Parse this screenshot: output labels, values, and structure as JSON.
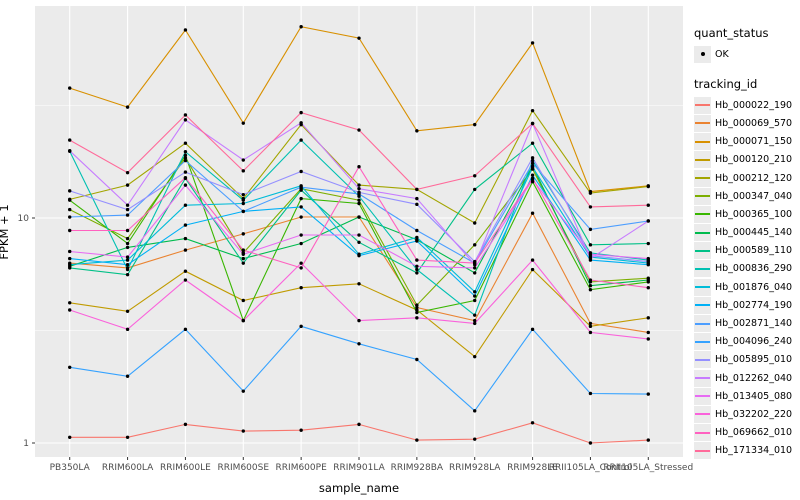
{
  "chart_data": {
    "type": "line",
    "title": "",
    "xlabel": "sample_name",
    "ylabel": "FPKM + 1",
    "y_scale": "log10",
    "y_tick_labels": [
      "10",
      "1"
    ],
    "y_tick_values": [
      10,
      1
    ],
    "y_minor_values": [
      3.162,
      31.623
    ],
    "ylim": [
      0.93,
      85
    ],
    "grid": "on",
    "panel_bg": "#EBEBEB",
    "grid_color": "#FFFFFF",
    "tick_text_color": "#4D4D4D",
    "point_color": "#000000",
    "legend_position": "right",
    "categories": [
      "PB350LA",
      "RRIM600LA",
      "RRIM600LE",
      "RRIM600SE",
      "RRIM600PE",
      "RRIM901LA",
      "RRIM928BA",
      "RRIM928LA",
      "RRIM928LE",
      "RRII105LA_Control",
      "RRII105LA_Stressed"
    ],
    "legend": {
      "quant_status_title": "quant_status",
      "quant_status_items": [
        {
          "label": "OK",
          "shape": "point"
        }
      ],
      "tracking_title": "tracking_id"
    },
    "series": [
      {
        "name": "Hb_000022_190",
        "color": "#F8766D",
        "values": [
          1.06,
          1.06,
          1.21,
          1.13,
          1.14,
          1.21,
          1.03,
          1.04,
          1.23,
          1.0,
          1.03
        ]
      },
      {
        "name": "Hb_000069_570",
        "color": "#EA8331",
        "values": [
          6.3,
          6.0,
          7.2,
          8.5,
          10.1,
          10.1,
          4.0,
          3.5,
          10.5,
          3.4,
          3.1
        ]
      },
      {
        "name": "Hb_000071_150",
        "color": "#D89000",
        "values": [
          37.8,
          31.1,
          68.5,
          26.4,
          70.8,
          63.0,
          24.4,
          26.0,
          60.0,
          13.1,
          13.9
        ]
      },
      {
        "name": "Hb_000120_210",
        "color": "#C09B00",
        "values": [
          4.2,
          3.85,
          5.8,
          4.3,
          4.9,
          5.1,
          3.9,
          2.42,
          5.9,
          3.3,
          3.6
        ]
      },
      {
        "name": "Hb_000212_120",
        "color": "#A3A500",
        "values": [
          12.1,
          14.0,
          21.5,
          12.2,
          26.0,
          14.0,
          13.4,
          9.5,
          30.0,
          12.9,
          13.8
        ]
      },
      {
        "name": "Hb_000347_040",
        "color": "#7CAE00",
        "values": [
          10.9,
          8.1,
          18.5,
          7.0,
          13.5,
          12.0,
          4.1,
          7.6,
          16.5,
          5.2,
          5.4
        ]
      },
      {
        "name": "Hb_000365_100",
        "color": "#39B600",
        "values": [
          12.0,
          7.7,
          19.0,
          3.5,
          12.2,
          11.6,
          3.8,
          4.3,
          14.5,
          4.8,
          5.2
        ]
      },
      {
        "name": "Hb_000445_140",
        "color": "#00BB4E",
        "values": [
          6.1,
          7.4,
          8.1,
          6.6,
          7.7,
          10.1,
          8.0,
          5.7,
          17.0,
          5.0,
          5.3
        ]
      },
      {
        "name": "Hb_000589_110",
        "color": "#00C087",
        "values": [
          6.0,
          5.6,
          15.0,
          6.3,
          13.3,
          7.8,
          5.7,
          13.4,
          21.5,
          7.6,
          7.7
        ]
      },
      {
        "name": "Hb_000836_290",
        "color": "#00C0B2",
        "values": [
          19.8,
          5.9,
          19.7,
          12.0,
          22.2,
          12.5,
          5.9,
          3.7,
          18.0,
          7.0,
          6.5
        ]
      },
      {
        "name": "Hb_001876_040",
        "color": "#00BCD8",
        "values": [
          6.2,
          6.5,
          11.4,
          11.6,
          13.9,
          6.9,
          8.2,
          4.7,
          16.8,
          6.7,
          6.3
        ]
      },
      {
        "name": "Hb_002774_190",
        "color": "#00B0F6",
        "values": [
          6.6,
          6.2,
          9.3,
          10.7,
          11.2,
          6.8,
          7.9,
          4.5,
          15.5,
          6.5,
          6.2
        ]
      },
      {
        "name": "Hb_002871_140",
        "color": "#4C9EFF",
        "values": [
          10.1,
          10.3,
          18.0,
          10.7,
          13.7,
          12.8,
          8.8,
          6.3,
          17.5,
          8.9,
          9.7
        ]
      },
      {
        "name": "Hb_004096_240",
        "color": "#35A2FF",
        "values": [
          2.17,
          1.98,
          3.2,
          1.7,
          3.3,
          2.76,
          2.35,
          1.39,
          3.2,
          1.66,
          1.65
        ]
      },
      {
        "name": "Hb_005895_010",
        "color": "#9590FF",
        "values": [
          13.2,
          10.9,
          16.0,
          12.7,
          16.1,
          13.0,
          11.5,
          6.4,
          18.5,
          6.8,
          6.4
        ]
      },
      {
        "name": "Hb_012262_040",
        "color": "#C77CFF",
        "values": [
          19.9,
          11.4,
          27.3,
          18.1,
          26.5,
          13.5,
          12.2,
          6.2,
          26.3,
          6.6,
          9.7
        ]
      },
      {
        "name": "Hb_013405_080",
        "color": "#E76BF3",
        "values": [
          7.1,
          6.7,
          14.0,
          6.9,
          8.4,
          8.4,
          6.1,
          6.0,
          14.8,
          6.9,
          6.6
        ]
      },
      {
        "name": "Hb_032202_220",
        "color": "#FA62DB",
        "values": [
          3.9,
          3.2,
          5.3,
          3.5,
          6.3,
          3.5,
          3.6,
          3.4,
          6.5,
          3.1,
          2.9
        ]
      },
      {
        "name": "Hb_069662_010",
        "color": "#FF61C0",
        "values": [
          8.8,
          8.8,
          15.1,
          7.2,
          6.0,
          16.9,
          6.5,
          6.3,
          15.0,
          5.3,
          4.9
        ]
      },
      {
        "name": "Hb_171334_010",
        "color": "#FF6A9A",
        "values": [
          22.2,
          15.9,
          28.7,
          16.2,
          29.4,
          24.6,
          13.4,
          15.4,
          26.3,
          11.2,
          11.4
        ]
      }
    ]
  }
}
